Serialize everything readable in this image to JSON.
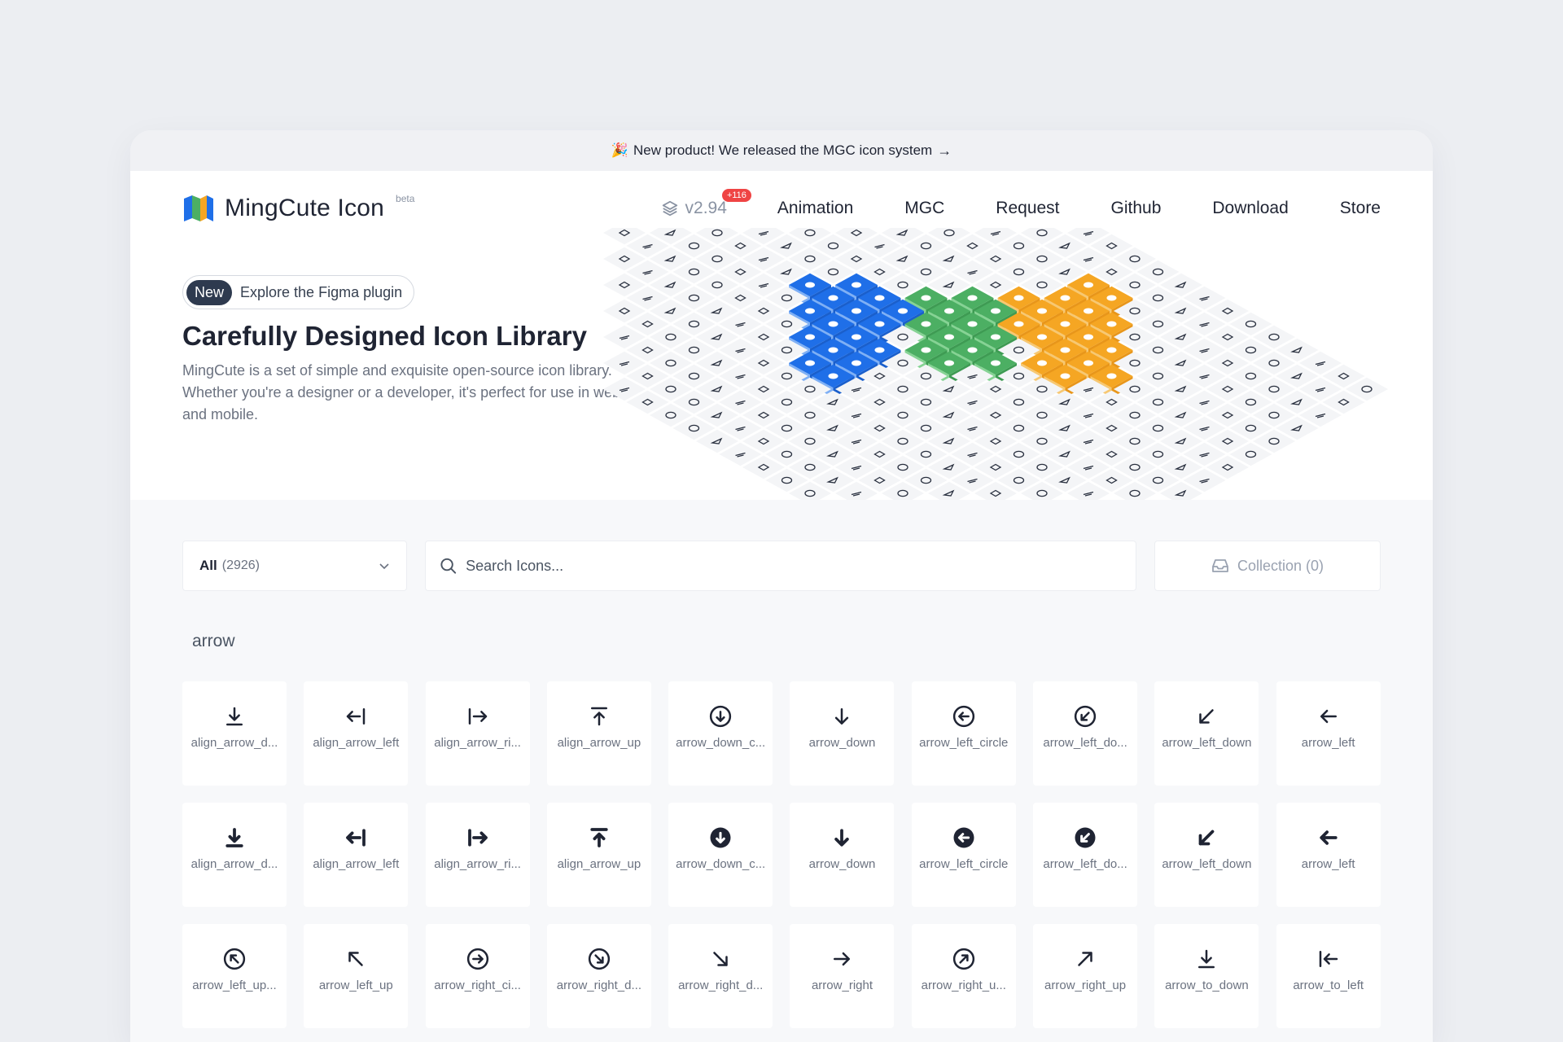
{
  "announcement": {
    "emoji": "🎉",
    "text": "New product! We released the MGC icon system",
    "arrow": "→"
  },
  "nav": {
    "logo_text": "MingCute Icon",
    "logo_beta": "beta",
    "version": "v2.94",
    "version_badge": "+116",
    "links": [
      "Animation",
      "MGC",
      "Request",
      "Github",
      "Download",
      "Store"
    ]
  },
  "hero": {
    "pill_new": "New",
    "pill_text": "Explore the Figma plugin",
    "title": "Carefully Designed Icon Library",
    "description": "MingCute is a set of simple and exquisite open-source icon library. Whether you're a designer or a developer, it's perfect for use in web and mobile."
  },
  "filters": {
    "category_label": "All",
    "category_count": "(2926)",
    "search_placeholder": "Search Icons...",
    "collection_label": "Collection (0)"
  },
  "section": "arrow",
  "icons": [
    {
      "name": "align_arrow_d...",
      "icon": "align-arrow-down-line",
      "filled": false
    },
    {
      "name": "align_arrow_left",
      "icon": "align-arrow-left-line",
      "filled": false
    },
    {
      "name": "align_arrow_ri...",
      "icon": "align-arrow-right-line",
      "filled": false
    },
    {
      "name": "align_arrow_up",
      "icon": "align-arrow-up-line",
      "filled": false
    },
    {
      "name": "arrow_down_c...",
      "icon": "arrow-down-circle-line",
      "filled": false
    },
    {
      "name": "arrow_down",
      "icon": "arrow-down-line",
      "filled": false
    },
    {
      "name": "arrow_left_circle",
      "icon": "arrow-left-circle-line",
      "filled": false
    },
    {
      "name": "arrow_left_do...",
      "icon": "arrow-left-down-circle-line",
      "filled": false
    },
    {
      "name": "arrow_left_down",
      "icon": "arrow-left-down-line",
      "filled": false
    },
    {
      "name": "arrow_left",
      "icon": "arrow-left-line",
      "filled": false
    },
    {
      "name": "align_arrow_d...",
      "icon": "align-arrow-down-fill",
      "filled": true
    },
    {
      "name": "align_arrow_left",
      "icon": "align-arrow-left-fill",
      "filled": true
    },
    {
      "name": "align_arrow_ri...",
      "icon": "align-arrow-right-fill",
      "filled": true
    },
    {
      "name": "align_arrow_up",
      "icon": "align-arrow-up-fill",
      "filled": true
    },
    {
      "name": "arrow_down_c...",
      "icon": "arrow-down-circle-fill",
      "filled": true
    },
    {
      "name": "arrow_down",
      "icon": "arrow-down-fill",
      "filled": true
    },
    {
      "name": "arrow_left_circle",
      "icon": "arrow-left-circle-fill",
      "filled": true
    },
    {
      "name": "arrow_left_do...",
      "icon": "arrow-left-down-circle-fill",
      "filled": true
    },
    {
      "name": "arrow_left_down",
      "icon": "arrow-left-down-fill",
      "filled": true
    },
    {
      "name": "arrow_left",
      "icon": "arrow-left-fill",
      "filled": true
    },
    {
      "name": "arrow_left_up...",
      "icon": "arrow-left-up-circle-line",
      "filled": false
    },
    {
      "name": "arrow_left_up",
      "icon": "arrow-left-up-line",
      "filled": false
    },
    {
      "name": "arrow_right_ci...",
      "icon": "arrow-right-circle-line",
      "filled": false
    },
    {
      "name": "arrow_right_d...",
      "icon": "arrow-right-down-circle-line",
      "filled": false
    },
    {
      "name": "arrow_right_d...",
      "icon": "arrow-right-down-line",
      "filled": false
    },
    {
      "name": "arrow_right",
      "icon": "arrow-right-line",
      "filled": false
    },
    {
      "name": "arrow_right_u...",
      "icon": "arrow-right-up-circle-line",
      "filled": false
    },
    {
      "name": "arrow_right_up",
      "icon": "arrow-right-up-line",
      "filled": false
    },
    {
      "name": "arrow_to_down",
      "icon": "arrow-to-down-line",
      "filled": false
    },
    {
      "name": "arrow_to_left",
      "icon": "arrow-to-left-line",
      "filled": false
    }
  ],
  "colors": {
    "text_dark": "#1f2433",
    "muted": "#6b7280",
    "badge": "#ef4444",
    "iso_orange": "#f5a623",
    "iso_green": "#4caf63",
    "iso_blue": "#1f6fe8"
  }
}
